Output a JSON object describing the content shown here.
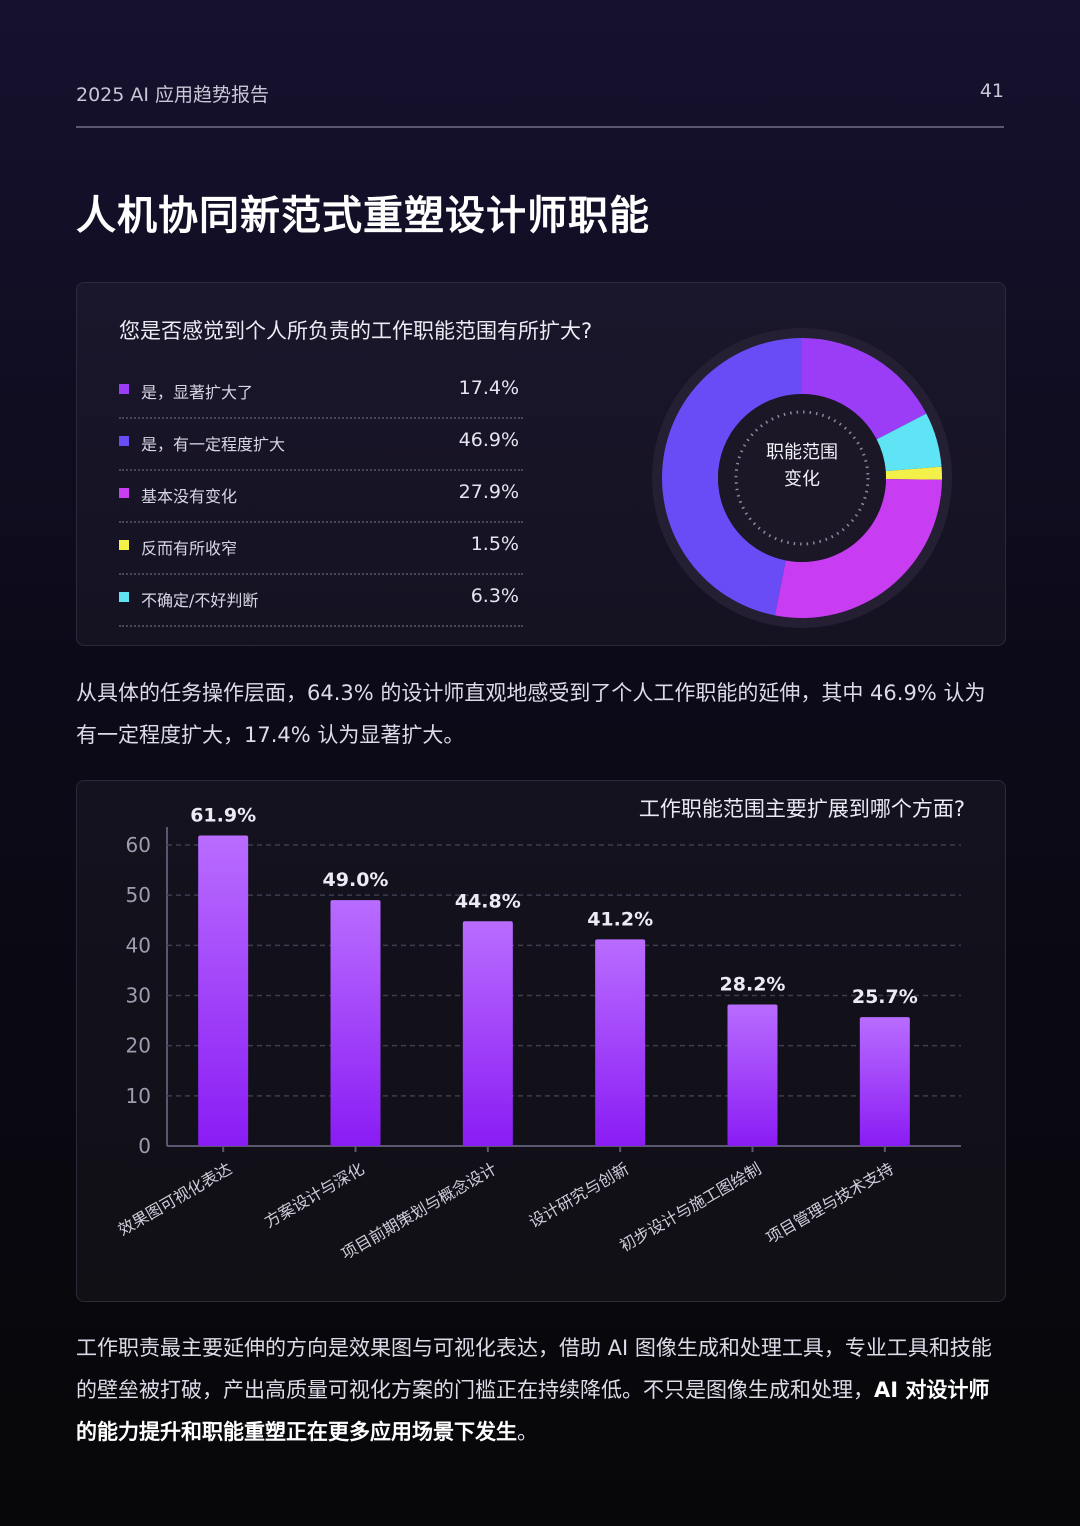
{
  "header": {
    "report_title": "2025 AI 应用趋势报告",
    "page_number": "41"
  },
  "page_title": "人机协同新范式重塑设计师职能",
  "colors": {
    "purple": "#9b3df6",
    "blue_violet": "#6a4cf6",
    "magenta": "#c83cf2",
    "yellow": "#f3f04a",
    "cyan": "#5ee4f4",
    "bar_top": "#b96cff",
    "bar_bottom": "#8a1cf4"
  },
  "survey1": {
    "question": "您是否感觉到个人所负责的工作职能范围有所扩大?",
    "center_label_line1": "职能范围",
    "center_label_line2": "变化",
    "items": [
      {
        "label": "是，显著扩大了",
        "value_text": "17.4%"
      },
      {
        "label": "是，有一定程度扩大",
        "value_text": "46.9%"
      },
      {
        "label": "基本没有变化",
        "value_text": "27.9%"
      },
      {
        "label": "反而有所收窄",
        "value_text": "1.5%"
      },
      {
        "label": "不确定/不好判断",
        "value_text": "6.3%"
      }
    ]
  },
  "paragraph1": "从具体的任务操作层面，64.3% 的设计师直观地感受到了个人工作职能的延伸，其中 46.9% 认为有一定程度扩大，17.4% 认为显著扩大。",
  "paragraph2": {
    "normal": "工作职责最主要延伸的方向是效果图与可视化表达，借助 AI 图像生成和处理工具，专业工具和技能的壁垒被打破，产出高质量可视化方案的门槛正在持续降低。不只是图像生成和处理，",
    "bold": "AI 对设计师的能力提升和职能重塑正在更多应用场景下发生",
    "end": "。"
  },
  "chart_data": [
    {
      "type": "pie",
      "categories": [
        "是，显著扩大了",
        "反而有所收窄",
        "基本没有变化",
        "是，有一定程度扩大",
        "不确定/不好判断"
      ],
      "values": [
        17.4,
        1.5,
        27.9,
        46.9,
        6.3
      ],
      "title": "您是否感觉到个人所负责的工作职能范围有所扩大?",
      "center_text": "职能范围变化",
      "slice_colors": {
        "是，显著扩大了": "#9b3df6",
        "是，有一定程度扩大": "#6a4cf6",
        "基本没有变化": "#c83cf2",
        "反而有所收窄": "#f3f04a",
        "不确定/不好判断": "#5ee4f4"
      },
      "slice_order_clockwise": [
        "是，显著扩大了",
        "不确定/不好判断",
        "反而有所收窄",
        "基本没有变化",
        "是，有一定程度扩大"
      ]
    },
    {
      "type": "bar",
      "title": "工作职能范围主要扩展到哪个方面?",
      "categories": [
        "效果图可视化表达",
        "方案设计与深化",
        "项目前期策划与概念设计",
        "设计研究与创新",
        "初步设计与施工图绘制",
        "项目管理与技术支持"
      ],
      "values": [
        61.9,
        49.0,
        44.8,
        41.2,
        28.2,
        25.7
      ],
      "data_labels": [
        "61.9%",
        "49.0%",
        "44.8%",
        "41.2%",
        "28.2%",
        "25.7%"
      ],
      "yticks": [
        "0",
        "10",
        "20",
        "30",
        "40",
        "50",
        "60"
      ],
      "ylim": [
        0,
        60
      ],
      "grid": true,
      "xlabel": "",
      "ylabel": ""
    }
  ]
}
